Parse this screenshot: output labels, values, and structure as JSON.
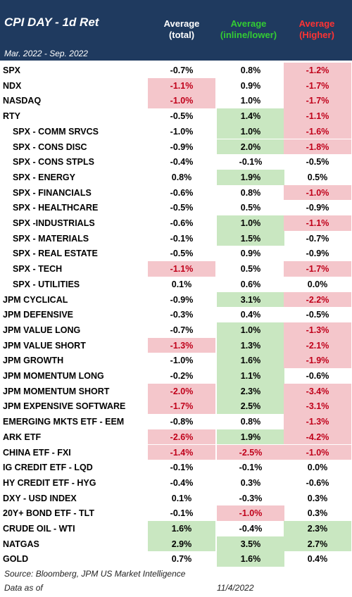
{
  "title": "CPI DAY - 1d Ret",
  "period": "Mar. 2022 - Sep. 2022",
  "columns": [
    {
      "line1": "Average",
      "line2": "(total)",
      "color": "#ffffff"
    },
    {
      "line1": "Average",
      "line2": "(inline/lower)",
      "color": "#33cc33"
    },
    {
      "line1": "Average",
      "line2": "(Higher)",
      "color": "#ff3333"
    }
  ],
  "rows": [
    {
      "label": "SPX",
      "indent": false,
      "values": [
        "-0.7%",
        "0.8%",
        "-1.2%"
      ],
      "styles": [
        "n",
        "n",
        "r"
      ]
    },
    {
      "label": "NDX",
      "indent": false,
      "values": [
        "-1.1%",
        "0.9%",
        "-1.7%"
      ],
      "styles": [
        "r",
        "n",
        "r"
      ]
    },
    {
      "label": "NASDAQ",
      "indent": false,
      "values": [
        "-1.0%",
        "1.0%",
        "-1.7%"
      ],
      "styles": [
        "r",
        "n",
        "r"
      ]
    },
    {
      "label": "RTY",
      "indent": false,
      "values": [
        "-0.5%",
        "1.4%",
        "-1.1%"
      ],
      "styles": [
        "n",
        "g",
        "r"
      ]
    },
    {
      "label": "SPX - COMM SRVCS",
      "indent": true,
      "values": [
        "-1.0%",
        "1.0%",
        "-1.6%"
      ],
      "styles": [
        "n",
        "g",
        "r"
      ]
    },
    {
      "label": "SPX - CONS DISC",
      "indent": true,
      "values": [
        "-0.9%",
        "2.0%",
        "-1.8%"
      ],
      "styles": [
        "n",
        "g",
        "r"
      ]
    },
    {
      "label": "SPX - CONS STPLS",
      "indent": true,
      "values": [
        "-0.4%",
        "-0.1%",
        "-0.5%"
      ],
      "styles": [
        "n",
        "n",
        "n"
      ]
    },
    {
      "label": "SPX - ENERGY",
      "indent": true,
      "values": [
        "0.8%",
        "1.9%",
        "0.5%"
      ],
      "styles": [
        "n",
        "g",
        "n"
      ]
    },
    {
      "label": "SPX - FINANCIALS",
      "indent": true,
      "values": [
        "-0.6%",
        "0.8%",
        "-1.0%"
      ],
      "styles": [
        "n",
        "n",
        "r"
      ]
    },
    {
      "label": "SPX - HEALTHCARE",
      "indent": true,
      "values": [
        "-0.5%",
        "0.5%",
        "-0.9%"
      ],
      "styles": [
        "n",
        "n",
        "n"
      ]
    },
    {
      "label": "SPX -INDUSTRIALS",
      "indent": true,
      "values": [
        "-0.6%",
        "1.0%",
        "-1.1%"
      ],
      "styles": [
        "n",
        "g",
        "r"
      ]
    },
    {
      "label": "SPX - MATERIALS",
      "indent": true,
      "values": [
        "-0.1%",
        "1.5%",
        "-0.7%"
      ],
      "styles": [
        "n",
        "g",
        "n"
      ]
    },
    {
      "label": "SPX - REAL ESTATE",
      "indent": true,
      "values": [
        "-0.5%",
        "0.9%",
        "-0.9%"
      ],
      "styles": [
        "n",
        "n",
        "n"
      ]
    },
    {
      "label": "SPX - TECH",
      "indent": true,
      "values": [
        "-1.1%",
        "0.5%",
        "-1.7%"
      ],
      "styles": [
        "r",
        "n",
        "r"
      ]
    },
    {
      "label": "SPX - UTILITIES",
      "indent": true,
      "values": [
        "0.1%",
        "0.6%",
        "0.0%"
      ],
      "styles": [
        "n",
        "n",
        "n"
      ]
    },
    {
      "label": "JPM CYCLICAL",
      "indent": false,
      "values": [
        "-0.9%",
        "3.1%",
        "-2.2%"
      ],
      "styles": [
        "n",
        "g",
        "r"
      ]
    },
    {
      "label": "JPM DEFENSIVE",
      "indent": false,
      "values": [
        "-0.3%",
        "0.4%",
        "-0.5%"
      ],
      "styles": [
        "n",
        "n",
        "n"
      ]
    },
    {
      "label": "JPM VALUE LONG",
      "indent": false,
      "values": [
        "-0.7%",
        "1.0%",
        "-1.3%"
      ],
      "styles": [
        "n",
        "g",
        "r"
      ]
    },
    {
      "label": "JPM VALUE SHORT",
      "indent": false,
      "values": [
        "-1.3%",
        "1.3%",
        "-2.1%"
      ],
      "styles": [
        "r",
        "g",
        "r"
      ]
    },
    {
      "label": "JPM GROWTH",
      "indent": false,
      "values": [
        "-1.0%",
        "1.6%",
        "-1.9%"
      ],
      "styles": [
        "n",
        "g",
        "r"
      ]
    },
    {
      "label": "JPM MOMENTUM LONG",
      "indent": false,
      "values": [
        "-0.2%",
        "1.1%",
        "-0.6%"
      ],
      "styles": [
        "n",
        "g",
        "n"
      ]
    },
    {
      "label": "JPM MOMENTUM SHORT",
      "indent": false,
      "values": [
        "-2.0%",
        "2.3%",
        "-3.4%"
      ],
      "styles": [
        "r",
        "g",
        "r"
      ]
    },
    {
      "label": "JPM EXPENSIVE SOFTWARE",
      "indent": false,
      "values": [
        "-1.7%",
        "2.5%",
        "-3.1%"
      ],
      "styles": [
        "r",
        "g",
        "r"
      ]
    },
    {
      "label": "EMERGING MKTS ETF - EEM",
      "indent": false,
      "values": [
        "-0.8%",
        "0.8%",
        "-1.3%"
      ],
      "styles": [
        "n",
        "n",
        "r"
      ]
    },
    {
      "label": "ARK ETF",
      "indent": false,
      "values": [
        "-2.6%",
        "1.9%",
        "-4.2%"
      ],
      "styles": [
        "r",
        "g",
        "r"
      ]
    },
    {
      "label": "CHINA ETF - FXI",
      "indent": false,
      "values": [
        "-1.4%",
        "-2.5%",
        "-1.0%"
      ],
      "styles": [
        "r",
        "r",
        "r"
      ]
    },
    {
      "label": "IG CREDIT ETF - LQD",
      "indent": false,
      "values": [
        "-0.1%",
        "-0.1%",
        "0.0%"
      ],
      "styles": [
        "n",
        "n",
        "n"
      ]
    },
    {
      "label": "HY CREDIT ETF - HYG",
      "indent": false,
      "values": [
        "-0.4%",
        "0.3%",
        "-0.6%"
      ],
      "styles": [
        "n",
        "n",
        "n"
      ]
    },
    {
      "label": "DXY - USD INDEX",
      "indent": false,
      "values": [
        "0.1%",
        "-0.3%",
        "0.3%"
      ],
      "styles": [
        "n",
        "n",
        "n"
      ]
    },
    {
      "label": "20Y+ BOND ETF - TLT",
      "indent": false,
      "values": [
        "-0.1%",
        "-1.0%",
        "0.3%"
      ],
      "styles": [
        "n",
        "r",
        "n"
      ]
    },
    {
      "label": "CRUDE OIL - WTI",
      "indent": false,
      "values": [
        "1.6%",
        "-0.4%",
        "2.3%"
      ],
      "styles": [
        "g",
        "n",
        "g"
      ]
    },
    {
      "label": "NATGAS",
      "indent": false,
      "values": [
        "2.9%",
        "3.5%",
        "2.7%"
      ],
      "styles": [
        "g",
        "g",
        "g"
      ]
    },
    {
      "label": "GOLD",
      "indent": false,
      "values": [
        "0.7%",
        "1.6%",
        "0.4%"
      ],
      "styles": [
        "n",
        "g",
        "n"
      ]
    }
  ],
  "footer": {
    "source": "Source: Bloomberg, JPM US Market Intelligence",
    "asof_label": "Data as of",
    "asof_date": "11/4/2022"
  }
}
